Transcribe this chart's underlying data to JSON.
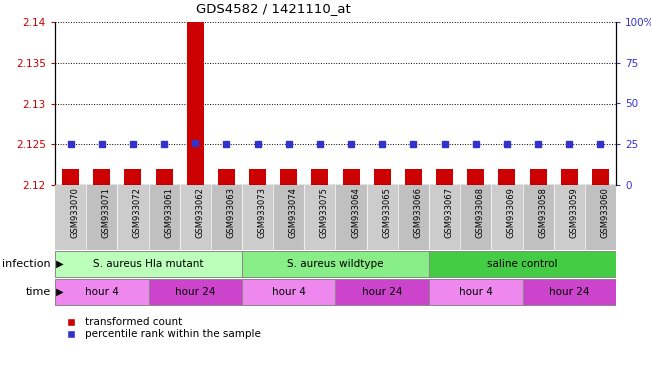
{
  "title": "GDS4582 / 1421110_at",
  "samples": [
    "GSM933070",
    "GSM933071",
    "GSM933072",
    "GSM933061",
    "GSM933062",
    "GSM933063",
    "GSM933073",
    "GSM933074",
    "GSM933075",
    "GSM933064",
    "GSM933065",
    "GSM933066",
    "GSM933067",
    "GSM933068",
    "GSM933069",
    "GSM933058",
    "GSM933059",
    "GSM933060"
  ],
  "transformed_count": [
    2.122,
    2.122,
    2.122,
    2.122,
    2.141,
    2.122,
    2.122,
    2.122,
    2.122,
    2.122,
    2.122,
    2.122,
    2.122,
    2.122,
    2.122,
    2.122,
    2.122,
    2.122
  ],
  "percentile_rank": [
    25,
    25,
    25,
    25,
    26,
    25,
    25,
    25,
    25,
    25,
    25,
    25,
    25,
    25,
    25,
    25,
    25,
    25
  ],
  "y_min": 2.12,
  "y_max": 2.14,
  "y_ticks_left": [
    2.12,
    2.125,
    2.13,
    2.135,
    2.14
  ],
  "y_ticks_right": [
    0,
    25,
    50,
    75,
    100
  ],
  "bar_color": "#cc0000",
  "dot_color": "#3333cc",
  "infection_groups": [
    {
      "label": "S. aureus Hla mutant",
      "start": 0,
      "end": 5,
      "color": "#bbffbb"
    },
    {
      "label": "S. aureus wildtype",
      "start": 6,
      "end": 11,
      "color": "#88ee88"
    },
    {
      "label": "saline control",
      "start": 12,
      "end": 17,
      "color": "#44cc44"
    }
  ],
  "time_groups": [
    {
      "label": "hour 4",
      "start": 0,
      "end": 2,
      "color": "#ee88ee"
    },
    {
      "label": "hour 24",
      "start": 3,
      "end": 5,
      "color": "#cc44cc"
    },
    {
      "label": "hour 4",
      "start": 6,
      "end": 8,
      "color": "#ee88ee"
    },
    {
      "label": "hour 24",
      "start": 9,
      "end": 11,
      "color": "#cc44cc"
    },
    {
      "label": "hour 4",
      "start": 12,
      "end": 14,
      "color": "#ee88ee"
    },
    {
      "label": "hour 24",
      "start": 15,
      "end": 17,
      "color": "#cc44cc"
    }
  ],
  "ylabel_left_color": "#cc0000",
  "ylabel_right_color": "#3333cc",
  "infection_label": "infection",
  "time_label": "time"
}
